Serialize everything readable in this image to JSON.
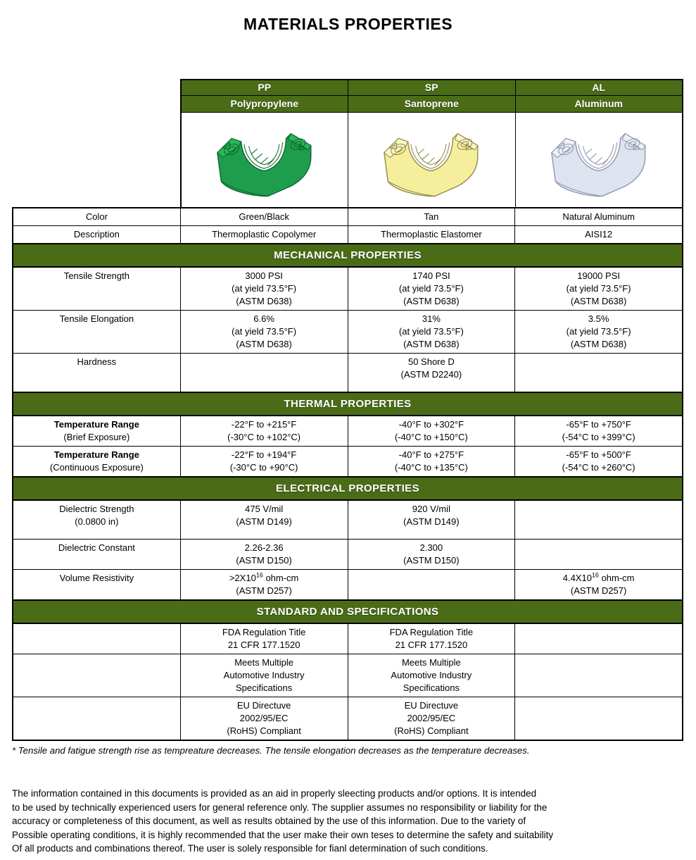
{
  "page": {
    "title": "MATERIALS PROPERTIES"
  },
  "colors": {
    "banner_green": "#4a6c17",
    "border_black": "#000000"
  },
  "materials": [
    {
      "code": "PP",
      "name": "Polypropylene",
      "part_color_body": "#1e9e4c",
      "part_color_light": "#2bb35d",
      "part_color_stroke": "#0c652c"
    },
    {
      "code": "SP",
      "name": "Santoprene",
      "part_color_body": "#f4ee9d",
      "part_color_light": "#faf6c9",
      "part_color_stroke": "#8e8747"
    },
    {
      "code": "AL",
      "name": "Aluminum",
      "part_color_body": "#dee3f0",
      "part_color_light": "#eef1f8",
      "part_color_stroke": "#8d95ab"
    }
  ],
  "table": {
    "rows": [
      {
        "type": "data",
        "label_lines": [
          "Color"
        ],
        "cells": [
          [
            "Green/Black"
          ],
          [
            "Tan"
          ],
          [
            "Natural Aluminum"
          ]
        ]
      },
      {
        "type": "data",
        "label_lines": [
          "Description"
        ],
        "cells": [
          [
            "Thermoplastic Copolymer"
          ],
          [
            "Thermoplastic Elastomer"
          ],
          [
            "AISI12"
          ]
        ]
      },
      {
        "type": "banner",
        "title": "MECHANICAL PROPERTIES"
      },
      {
        "type": "data",
        "label_lines": [
          "Tensile Strength"
        ],
        "cells": [
          [
            "3000 PSI",
            "(at yield 73.5°F)",
            "(ASTM D638)"
          ],
          [
            "1740 PSI",
            "(at yield 73.5°F)",
            "(ASTM D638)"
          ],
          [
            "19000 PSI",
            "(at yield 73.5°F)",
            "(ASTM D638)"
          ]
        ]
      },
      {
        "type": "data",
        "label_lines": [
          "Tensile Elongation"
        ],
        "cells": [
          [
            "6.6%",
            "(at yield 73.5°F)",
            "(ASTM D638)"
          ],
          [
            "31%",
            "(at yield 73.5°F)",
            "(ASTM D638)"
          ],
          [
            "3.5%",
            "(at yield 73.5°F)",
            "(ASTM D638)"
          ]
        ]
      },
      {
        "type": "data",
        "tall": true,
        "label_lines": [
          "Hardness"
        ],
        "cells": [
          [],
          [
            "50 Shore D",
            "(ASTM D2240)"
          ],
          []
        ]
      },
      {
        "type": "banner",
        "title": "THERMAL PROPERTIES"
      },
      {
        "type": "data",
        "label_bold_first": true,
        "label_lines": [
          "Temperature Range",
          "(Brief Exposure)"
        ],
        "cells": [
          [
            "-22°F to +215°F",
            "(-30°C to +102°C)"
          ],
          [
            "-40°F to +302°F",
            "(-40°C to +150°C)"
          ],
          [
            "-65°F to +750°F",
            "(-54°C to +399°C)"
          ]
        ]
      },
      {
        "type": "data",
        "label_bold_first": true,
        "label_lines": [
          "Temperature Range",
          "(Continuous Exposure)"
        ],
        "cells": [
          [
            "-22°F to +194°F",
            "(-30°C to +90°C)"
          ],
          [
            "-40°F to +275°F",
            "(-40°C to +135°C)"
          ],
          [
            "-65°F to +500°F",
            "(-54°C to +260°C)"
          ]
        ]
      },
      {
        "type": "banner",
        "title": "ELECTRICAL PROPERTIES"
      },
      {
        "type": "data",
        "tall": true,
        "label_lines": [
          "Dielectric Strength",
          "(0.0800 in)"
        ],
        "cells": [
          [
            "475 V/mil",
            "(ASTM D149)"
          ],
          [
            "920 V/mil",
            "(ASTM D149)"
          ],
          []
        ]
      },
      {
        "type": "data",
        "label_lines": [
          "Dielectric Constant"
        ],
        "cells": [
          [
            "2.26-2.36",
            "(ASTM D150)"
          ],
          [
            "2.300",
            "(ASTM D150)"
          ],
          []
        ]
      },
      {
        "type": "data",
        "label_lines": [
          "Volume Resistivity"
        ],
        "cells": [
          [
            ">2X10{16} ohm-cm",
            "(ASTM D257)"
          ],
          [],
          [
            "4.4X10{16} ohm-cm",
            "(ASTM D257)"
          ]
        ]
      },
      {
        "type": "banner",
        "title": "STANDARD AND SPECIFICATIONS"
      },
      {
        "type": "data",
        "label_lines": [],
        "cells": [
          [
            "FDA Regulation Title",
            "21 CFR 177.1520"
          ],
          [
            "FDA Regulation Title",
            "21 CFR 177.1520"
          ],
          []
        ]
      },
      {
        "type": "data",
        "label_lines": [],
        "cells": [
          [
            "Meets Multiple",
            "Automotive Industry",
            "Specifications"
          ],
          [
            "Meets Multiple",
            "Automotive Industry",
            "Specifications"
          ],
          []
        ]
      },
      {
        "type": "data",
        "label_lines": [],
        "cells": [
          [
            "EU Directuve",
            "2002/95/EC",
            "(RoHS) Compliant"
          ],
          [
            "EU Directuve",
            "2002/95/EC",
            "(RoHS) Compliant"
          ],
          []
        ]
      }
    ]
  },
  "footnote": "* Tensile and fatigue strength rise as tempreature decreases. The tensile elongation decreases as the temperature decreases.",
  "disclaimer_lines": [
    "The information contained in this documents is provided as an aid in properly sleecting products and/or options. It is intended",
    "to be used by technically experienced users for general reference only. The supplier assumes no responsibility or liability for the",
    "accuracy or completeness of this document, as well as results obtained by the use of this information. Due to the variety of",
    "Possible operating conditions, it is highly recommended that the user make their own teses to determine the safety and suitability",
    "Of all products and combinations thereof. The user is solely responsible for fianl determination of such conditions."
  ]
}
